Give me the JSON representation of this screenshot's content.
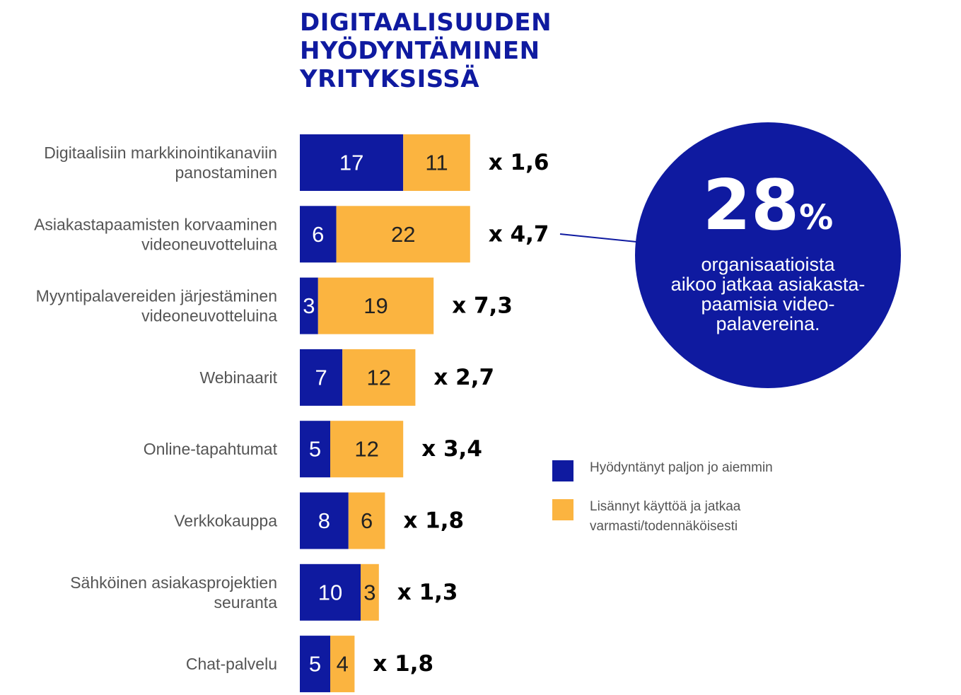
{
  "title_lines": [
    "DIGITAALISUUDEN",
    "HYÖDYNTÄMINEN",
    "YRITYKSISSÄ"
  ],
  "colors": {
    "blue": "#0f1aa0",
    "orange": "#fbb440",
    "label_gray": "#555555"
  },
  "chart_data": {
    "type": "bar",
    "orientation": "horizontal",
    "stacked": true,
    "categories": [
      [
        "Digitaalisiin markkinointikanaviin",
        "panostaminen"
      ],
      [
        "Asiakastapaamisten korvaaminen",
        "videoneuvotteluina"
      ],
      [
        "Myyntipalavereiden järjestäminen",
        "videoneuvotteluina"
      ],
      [
        "Webinaarit"
      ],
      [
        "Online-tapahtumat"
      ],
      [
        "Verkkokauppa"
      ],
      [
        "Sähköinen asiakasprojektien",
        "seuranta"
      ],
      [
        "Chat-palvelu"
      ]
    ],
    "series": [
      {
        "name": "Hyödyntänyt paljon jo aiemmin",
        "color": "#0f1aa0",
        "text_color": "#ffffff",
        "values": [
          17,
          6,
          3,
          7,
          5,
          8,
          10,
          5
        ]
      },
      {
        "name": "Lisännyt käyttöä ja jatkaa varmasti/todennäköisesti",
        "color": "#fbb440",
        "text_color": "#222222",
        "values": [
          11,
          22,
          19,
          12,
          12,
          6,
          3,
          4
        ]
      }
    ],
    "multipliers": [
      "x 1,6",
      "x 4,7",
      "x 7,3",
      "x 2,7",
      "x 3,4",
      "x 1,8",
      "x 1,3",
      "x 1,8"
    ],
    "grid": false,
    "axes_visible": false
  },
  "callout": {
    "number": "28",
    "unit": "%",
    "text_lines": [
      "organisaatioista",
      "aikoo jatkaa asiakasta-",
      "paamisia video-",
      "palavereina."
    ]
  },
  "legend": [
    {
      "lines": [
        "Hyödyntänyt paljon jo aiemmin"
      ],
      "color": "#0f1aa0"
    },
    {
      "lines": [
        "Lisännyt käyttöä ja jatkaa",
        "varmasti/todennäköisesti"
      ],
      "color": "#fbb440"
    }
  ]
}
